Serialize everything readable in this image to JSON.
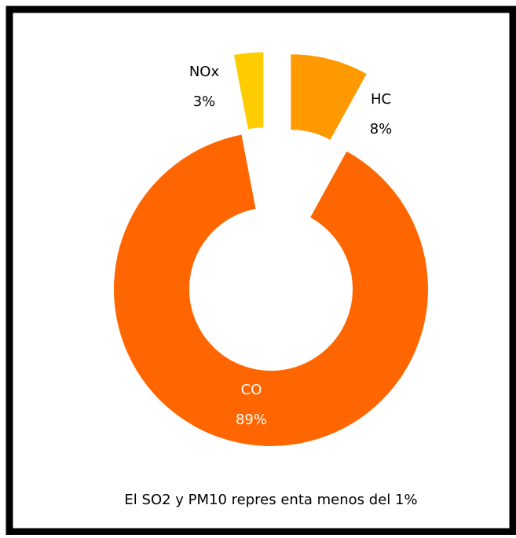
{
  "chart_data": {
    "type": "donut",
    "categories": [
      "HC",
      "CO",
      "NOx"
    ],
    "values": [
      8,
      89,
      3
    ],
    "value_labels": [
      "8%",
      "89%",
      "3%"
    ],
    "colors": [
      "#ff9900",
      "#ff6600",
      "#ffcc00"
    ],
    "annotation": "El SO2  y  PM10 repres enta menos  del 1%"
  }
}
